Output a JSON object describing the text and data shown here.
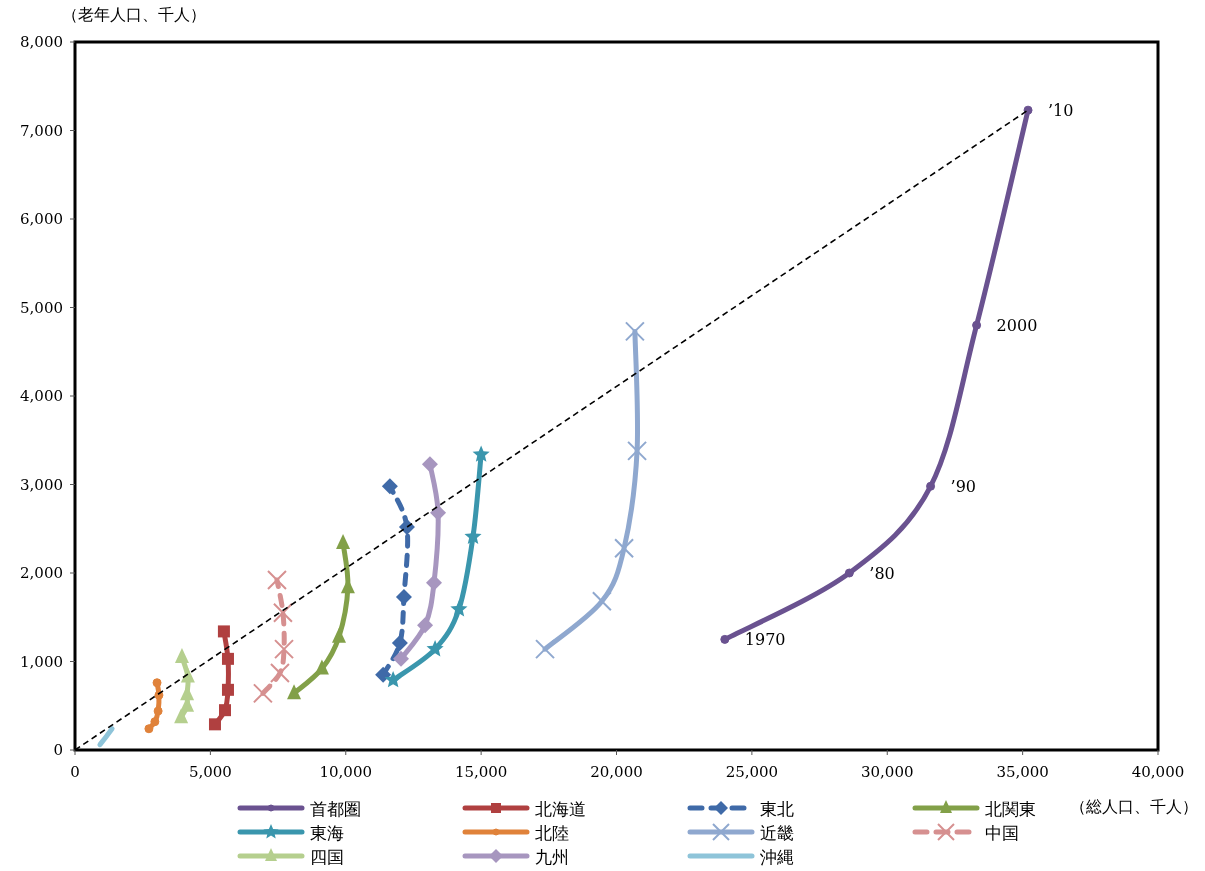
{
  "chart_data": {
    "type": "line",
    "xlabel": "（総人口、千人）",
    "ylabel": "（老年人口、千人）",
    "xlim": [
      0,
      40000
    ],
    "ylim": [
      0,
      8000
    ],
    "xticks": [
      {
        "value": 0,
        "label": "0"
      },
      {
        "value": 5000,
        "label": "5,000"
      },
      {
        "value": 10000,
        "label": "10,000"
      },
      {
        "value": 15000,
        "label": "15,000"
      },
      {
        "value": 20000,
        "label": "20,000"
      },
      {
        "value": 25000,
        "label": "25,000"
      },
      {
        "value": 30000,
        "label": "30,000"
      },
      {
        "value": 35000,
        "label": "35,000"
      },
      {
        "value": 40000,
        "label": "40,000"
      }
    ],
    "yticks": [
      {
        "value": 0,
        "label": "0"
      },
      {
        "value": 1000,
        "label": "1,000"
      },
      {
        "value": 2000,
        "label": "2,000"
      },
      {
        "value": 3000,
        "label": "3,000"
      },
      {
        "value": 4000,
        "label": "4,000"
      },
      {
        "value": 5000,
        "label": "5,000"
      },
      {
        "value": 6000,
        "label": "6,000"
      },
      {
        "value": 7000,
        "label": "7,000"
      },
      {
        "value": 8000,
        "label": "8,000"
      }
    ],
    "legend": "bottom",
    "series": [
      {
        "name": "首都圏",
        "color": "#6a5290",
        "marker": "circle",
        "x": [
          24000,
          28600,
          31600,
          33300,
          35200
        ],
        "values": [
          1250,
          2000,
          2980,
          4800,
          7230
        ]
      },
      {
        "name": "北海道",
        "color": "#b04040",
        "marker": "square",
        "x": [
          5170,
          5540,
          5650,
          5650,
          5500
        ],
        "values": [
          290,
          450,
          680,
          1030,
          1340
        ]
      },
      {
        "name": "東北",
        "color": "#3f6aa8",
        "marker": "diamond",
        "line_style": "dashed",
        "x": [
          11380,
          12000,
          12150,
          12260,
          11630
        ],
        "values": [
          850,
          1210,
          1730,
          2520,
          2980
        ]
      },
      {
        "name": "北関東",
        "color": "#82a048",
        "marker": "triangle",
        "x": [
          8090,
          9120,
          9750,
          10080,
          9900
        ],
        "values": [
          640,
          920,
          1280,
          1840,
          2340
        ]
      },
      {
        "name": "東海",
        "color": "#3a96ad",
        "marker": "star",
        "x": [
          11750,
          13300,
          14180,
          14700,
          15000
        ],
        "values": [
          790,
          1140,
          1590,
          2410,
          3340
        ]
      },
      {
        "name": "北陸",
        "color": "#e0823a",
        "marker": "circle",
        "x": [
          2730,
          2950,
          3070,
          3100,
          3030
        ],
        "values": [
          240,
          320,
          440,
          620,
          760
        ]
      },
      {
        "name": "近畿",
        "color": "#8fa8cf",
        "marker": "cross",
        "x": [
          17360,
          19460,
          20280,
          20760,
          20680
        ],
        "values": [
          1140,
          1680,
          2280,
          3380,
          4730
        ]
      },
      {
        "name": "中国",
        "color": "#d69090",
        "marker": "cross",
        "line_style": "dashed",
        "x": [
          6940,
          7570,
          7720,
          7680,
          7460
        ],
        "values": [
          640,
          870,
          1140,
          1550,
          1920
        ]
      },
      {
        "name": "四国",
        "color": "#b5cf8e",
        "marker": "triangle",
        "x": [
          3920,
          4140,
          4140,
          4170,
          3950
        ],
        "values": [
          370,
          500,
          630,
          830,
          1050
        ]
      },
      {
        "name": "九州",
        "color": "#a796bf",
        "marker": "diamond",
        "x": [
          12040,
          12930,
          13260,
          13410,
          13110
        ],
        "values": [
          1030,
          1410,
          1890,
          2680,
          3230
        ]
      },
      {
        "name": "沖縄",
        "color": "#8ec4d9",
        "marker": "none",
        "x": [
          920,
          1150,
          1370
        ],
        "values": [
          60,
          150,
          240
        ]
      },
      {
        "color": "#000000",
        "marker": "none",
        "line_style": "dashed",
        "x": [
          0,
          35200
        ],
        "values": [
          0,
          7230
        ]
      }
    ],
    "annotations": [
      {
        "text": "1970",
        "x": 24000,
        "y": 1250
      },
      {
        "text": "’80",
        "x": 28600,
        "y": 2000
      },
      {
        "text": "’90",
        "x": 31600,
        "y": 2980
      },
      {
        "text": "2000",
        "x": 33300,
        "y": 4800
      },
      {
        "text": "’10",
        "x": 35200,
        "y": 7230
      }
    ]
  }
}
